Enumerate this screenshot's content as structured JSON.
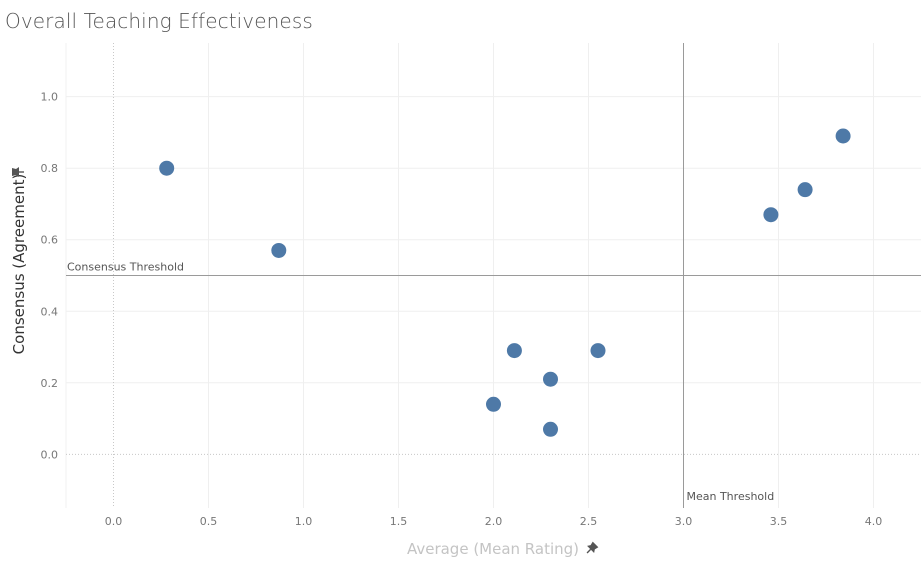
{
  "chart_data": {
    "type": "scatter",
    "title": "Overall Teaching Effectiveness",
    "xlabel": "Average (Mean Rating)",
    "ylabel": "Consensus (Agreement)",
    "xlim": [
      -0.25,
      4.25
    ],
    "ylim": [
      -0.15,
      1.15
    ],
    "x_ticks": [
      "0.0",
      "0.5",
      "1.0",
      "1.5",
      "2.0",
      "2.5",
      "3.0",
      "3.5",
      "4.0"
    ],
    "y_ticks": [
      "0.0",
      "0.2",
      "0.4",
      "0.6",
      "0.8",
      "1.0"
    ],
    "grid": true,
    "marker_color": "#4e79a7",
    "points": [
      {
        "x": 0.28,
        "y": 0.8
      },
      {
        "x": 0.87,
        "y": 0.57
      },
      {
        "x": 2.0,
        "y": 0.14
      },
      {
        "x": 2.11,
        "y": 0.29
      },
      {
        "x": 2.3,
        "y": 0.21
      },
      {
        "x": 2.3,
        "y": 0.07
      },
      {
        "x": 2.55,
        "y": 0.29
      },
      {
        "x": 3.46,
        "y": 0.67
      },
      {
        "x": 3.64,
        "y": 0.74
      },
      {
        "x": 3.84,
        "y": 0.89
      }
    ],
    "reference_lines": [
      {
        "axis": "y",
        "value": 0.5,
        "label": "Consensus Threshold"
      },
      {
        "axis": "x",
        "value": 3.0,
        "label": "Mean Threshold"
      }
    ],
    "pin_icon": "pin-icon"
  }
}
